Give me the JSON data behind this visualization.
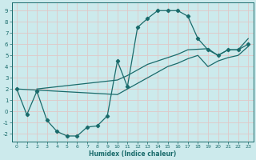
{
  "xlabel": "Humidex (Indice chaleur)",
  "bg_color": "#cceaec",
  "grid_color": "#e8c8c8",
  "line_color": "#1a6b6b",
  "xlim": [
    -0.5,
    23.5
  ],
  "ylim": [
    -2.7,
    9.7
  ],
  "xticks": [
    0,
    1,
    2,
    3,
    4,
    5,
    6,
    7,
    8,
    9,
    10,
    11,
    12,
    13,
    14,
    15,
    16,
    17,
    18,
    19,
    20,
    21,
    22,
    23
  ],
  "yticks": [
    -2,
    -1,
    0,
    1,
    2,
    3,
    4,
    5,
    6,
    7,
    8,
    9
  ],
  "curve1_x": [
    0,
    1,
    2,
    3,
    4,
    5,
    6,
    7,
    8,
    9,
    10,
    11,
    12,
    13,
    14,
    15,
    16,
    17,
    18,
    19,
    20,
    21,
    22,
    23
  ],
  "curve1_y": [
    2.0,
    -0.3,
    1.8,
    -0.8,
    -1.8,
    -2.2,
    -2.2,
    -1.4,
    -1.3,
    -0.4,
    4.5,
    2.2,
    7.5,
    8.3,
    9.0,
    9.0,
    9.0,
    8.5,
    6.5,
    5.5,
    5.0,
    5.5,
    5.5,
    6.0
  ],
  "curve2_x": [
    2,
    10,
    11,
    12,
    13,
    14,
    15,
    16,
    17,
    19,
    20,
    21,
    22,
    23
  ],
  "curve2_y": [
    2.0,
    2.8,
    3.2,
    3.7,
    4.2,
    4.5,
    4.8,
    5.1,
    5.5,
    5.6,
    5.0,
    5.5,
    5.5,
    6.5
  ],
  "curve3_x": [
    0,
    10,
    11,
    12,
    13,
    14,
    15,
    16,
    17,
    18,
    19,
    20,
    21,
    22,
    23
  ],
  "curve3_y": [
    2.0,
    1.5,
    2.0,
    2.5,
    3.0,
    3.5,
    4.0,
    4.3,
    4.7,
    5.0,
    4.0,
    4.5,
    4.8,
    5.0,
    5.8
  ]
}
